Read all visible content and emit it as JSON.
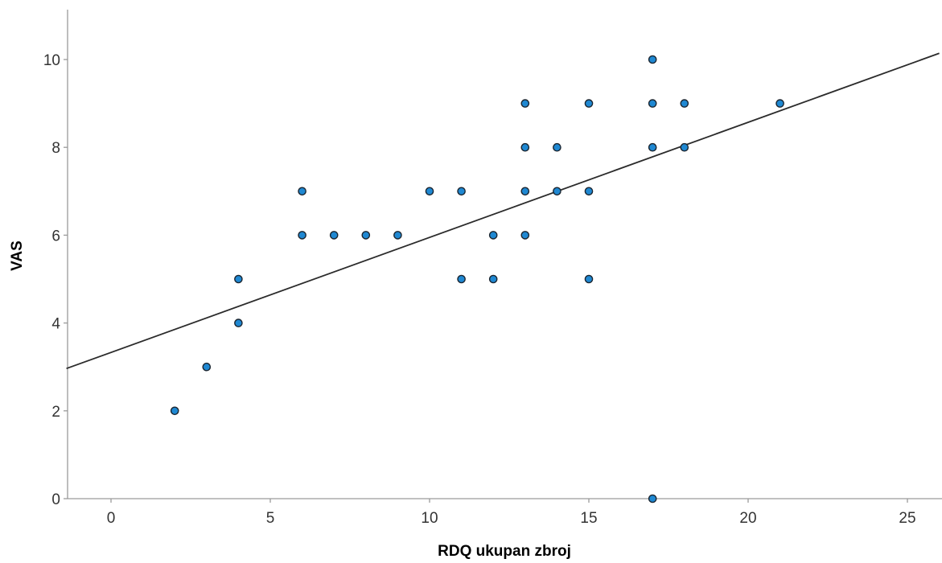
{
  "chart_data": {
    "type": "scatter",
    "title": "",
    "xlabel": "RDQ ukupan zbroj",
    "ylabel": "VAS",
    "xlim": [
      -1.4,
      26
    ],
    "ylim": [
      0,
      11.2
    ],
    "x_ticks": [
      0,
      5,
      10,
      15,
      20,
      25
    ],
    "y_ticks": [
      0,
      2,
      4,
      6,
      8,
      10
    ],
    "grid": false,
    "legend": "none",
    "point_color": "#1f88d2",
    "point_edge_color": "#1a2530",
    "line_color": "#2b2b2b",
    "points": [
      {
        "x": 2,
        "y": 2
      },
      {
        "x": 3,
        "y": 3
      },
      {
        "x": 4,
        "y": 5
      },
      {
        "x": 4,
        "y": 4
      },
      {
        "x": 6,
        "y": 7
      },
      {
        "x": 6,
        "y": 6
      },
      {
        "x": 7,
        "y": 6
      },
      {
        "x": 8,
        "y": 6
      },
      {
        "x": 9,
        "y": 6
      },
      {
        "x": 10,
        "y": 7
      },
      {
        "x": 11,
        "y": 7
      },
      {
        "x": 11,
        "y": 5
      },
      {
        "x": 12,
        "y": 6
      },
      {
        "x": 12,
        "y": 5
      },
      {
        "x": 13,
        "y": 9
      },
      {
        "x": 13,
        "y": 8
      },
      {
        "x": 13,
        "y": 7
      },
      {
        "x": 13,
        "y": 6
      },
      {
        "x": 14,
        "y": 8
      },
      {
        "x": 14,
        "y": 7
      },
      {
        "x": 15,
        "y": 9
      },
      {
        "x": 15,
        "y": 7
      },
      {
        "x": 15,
        "y": 5
      },
      {
        "x": 17,
        "y": 10
      },
      {
        "x": 17,
        "y": 9
      },
      {
        "x": 17,
        "y": 8
      },
      {
        "x": 17,
        "y": 0
      },
      {
        "x": 18,
        "y": 9
      },
      {
        "x": 18,
        "y": 8
      },
      {
        "x": 21,
        "y": 9
      }
    ],
    "fit_line": {
      "intercept": 3.33,
      "slope": 0.262
    }
  }
}
